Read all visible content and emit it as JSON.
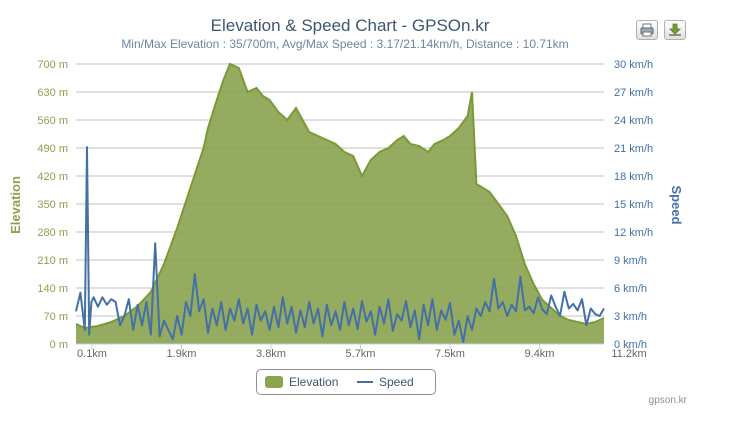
{
  "chart": {
    "title": "Elevation & Speed Chart - GPSOn.kr",
    "subtitle": "Min/Max Elevation : 35/700m, Avg/Max Speed : 3.17/21.14km/h, Distance : 10.71km",
    "credits": "gpson.kr",
    "legend": {
      "elevation": "Elevation",
      "speed": "Speed"
    },
    "toolbar": {
      "print_icon": "printer-icon",
      "export_icon": "download-icon"
    },
    "colors": {
      "elevation_fill": "#8aa34f",
      "elevation_line": "#7a9a36",
      "speed_line": "#4470a6",
      "left_axis_text": "#8aa34f",
      "right_axis_text": "#4470a6"
    }
  },
  "chart_data": {
    "type": "area",
    "title": "Elevation & Speed Chart - GPSOn.kr",
    "subtitle": "Min/Max Elevation : 35/700m, Avg/Max Speed : 3.17/21.14km/h, Distance : 10.71km",
    "xlabel": "",
    "x_ticks": [
      "0.1km",
      "1.9km",
      "3.8km",
      "5.7km",
      "7.5km",
      "9.4km",
      "11.2km"
    ],
    "y_left": {
      "label": "Elevation",
      "ticks": [
        "0 m",
        "70 m",
        "140 m",
        "210 m",
        "280 m",
        "350 m",
        "420 m",
        "490 m",
        "560 m",
        "630 m",
        "700 m"
      ],
      "ylim": [
        0,
        700
      ]
    },
    "y_right": {
      "label": "Speed",
      "ticks": [
        "0 km/h",
        "3 km/h",
        "6 km/h",
        "9 km/h",
        "12 km/h",
        "15 km/h",
        "18 km/h",
        "21 km/h",
        "24 km/h",
        "27 km/h",
        "30 km/h"
      ],
      "ylim": [
        0,
        30
      ]
    },
    "xlim": [
      0,
      12
    ],
    "legend_position": "bottom-center",
    "grid": true,
    "series": [
      {
        "name": "Elevation",
        "type": "area",
        "x": [
          0.0,
          0.2,
          0.5,
          0.8,
          1.1,
          1.4,
          1.7,
          2.0,
          2.3,
          2.6,
          2.9,
          3.0,
          3.2,
          3.35,
          3.5,
          3.7,
          3.9,
          4.1,
          4.25,
          4.4,
          4.6,
          4.8,
          5.0,
          5.1,
          5.3,
          5.5,
          5.7,
          5.9,
          6.1,
          6.3,
          6.5,
          6.7,
          6.9,
          7.1,
          7.3,
          7.45,
          7.6,
          7.8,
          8.0,
          8.15,
          8.35,
          8.5,
          8.7,
          8.9,
          9.0,
          9.1,
          9.25,
          9.4,
          9.6,
          9.8,
          10.0,
          10.2,
          10.4,
          10.6,
          10.8,
          11.0,
          11.2,
          11.4,
          11.6,
          11.8,
          12.0
        ],
        "values": [
          50,
          40,
          45,
          55,
          70,
          95,
          130,
          200,
          290,
          390,
          490,
          540,
          610,
          660,
          700,
          690,
          630,
          640,
          620,
          610,
          580,
          560,
          590,
          570,
          530,
          520,
          510,
          500,
          480,
          470,
          420,
          460,
          480,
          490,
          510,
          520,
          500,
          495,
          480,
          500,
          510,
          520,
          540,
          570,
          630,
          400,
          390,
          380,
          350,
          320,
          270,
          200,
          150,
          110,
          90,
          70,
          60,
          55,
          50,
          55,
          65
        ]
      },
      {
        "name": "Speed",
        "type": "line",
        "x": [
          0.0,
          0.1,
          0.2,
          0.25,
          0.3,
          0.35,
          0.4,
          0.5,
          0.6,
          0.7,
          0.8,
          0.9,
          1.0,
          1.1,
          1.2,
          1.3,
          1.4,
          1.5,
          1.6,
          1.7,
          1.8,
          1.9,
          2.0,
          2.1,
          2.2,
          2.3,
          2.4,
          2.5,
          2.6,
          2.7,
          2.8,
          2.9,
          3.0,
          3.1,
          3.2,
          3.3,
          3.4,
          3.5,
          3.6,
          3.7,
          3.8,
          3.9,
          4.0,
          4.1,
          4.2,
          4.3,
          4.4,
          4.5,
          4.6,
          4.7,
          4.8,
          4.9,
          5.0,
          5.1,
          5.2,
          5.3,
          5.4,
          5.5,
          5.6,
          5.7,
          5.8,
          5.9,
          6.0,
          6.1,
          6.2,
          6.3,
          6.4,
          6.5,
          6.6,
          6.7,
          6.8,
          6.9,
          7.0,
          7.1,
          7.2,
          7.3,
          7.4,
          7.5,
          7.6,
          7.7,
          7.8,
          7.9,
          8.0,
          8.1,
          8.2,
          8.3,
          8.4,
          8.5,
          8.6,
          8.7,
          8.8,
          8.9,
          9.0,
          9.1,
          9.2,
          9.3,
          9.4,
          9.5,
          9.6,
          9.7,
          9.8,
          9.9,
          10.0,
          10.1,
          10.2,
          10.3,
          10.4,
          10.5,
          10.6,
          10.7,
          10.8,
          10.9,
          11.0,
          11.1,
          11.2,
          11.3,
          11.4,
          11.5,
          11.6,
          11.7,
          11.8,
          11.9,
          12.0
        ],
        "values": [
          3.5,
          5.5,
          1.5,
          21.1,
          1.0,
          4.5,
          5.0,
          4.0,
          5.0,
          4.2,
          4.8,
          4.5,
          2.0,
          3.0,
          4.8,
          1.5,
          4.2,
          2.0,
          4.5,
          1.0,
          10.8,
          0.8,
          2.5,
          1.5,
          0.5,
          3.0,
          1.0,
          4.5,
          3.0,
          7.5,
          3.5,
          4.8,
          1.2,
          3.8,
          2.0,
          4.5,
          1.5,
          3.8,
          2.5,
          4.8,
          2.2,
          3.8,
          1.0,
          4.2,
          2.5,
          3.5,
          1.5,
          4.0,
          1.8,
          5.0,
          2.2,
          4.0,
          1.2,
          3.6,
          1.8,
          4.5,
          2.2,
          3.8,
          0.8,
          4.2,
          2.0,
          3.5,
          1.5,
          4.5,
          2.0,
          3.8,
          1.6,
          4.6,
          2.4,
          3.5,
          1.0,
          4.0,
          2.2,
          4.8,
          1.4,
          3.2,
          2.5,
          4.6,
          1.8,
          3.6,
          0.5,
          4.2,
          2.0,
          4.8,
          1.5,
          3.6,
          2.6,
          4.4,
          1.0,
          2.5,
          0.2,
          3.0,
          1.5,
          3.8,
          3.0,
          4.5,
          3.5,
          7.0,
          3.8,
          4.5,
          3.0,
          4.2,
          3.5,
          7.2,
          3.6,
          4.0,
          3.3,
          5.0,
          3.7,
          3.2,
          5.2,
          4.0,
          3.0,
          5.6,
          3.8,
          4.3,
          3.6,
          4.8,
          2.0,
          3.8,
          3.2,
          3.0,
          3.8
        ]
      }
    ]
  }
}
